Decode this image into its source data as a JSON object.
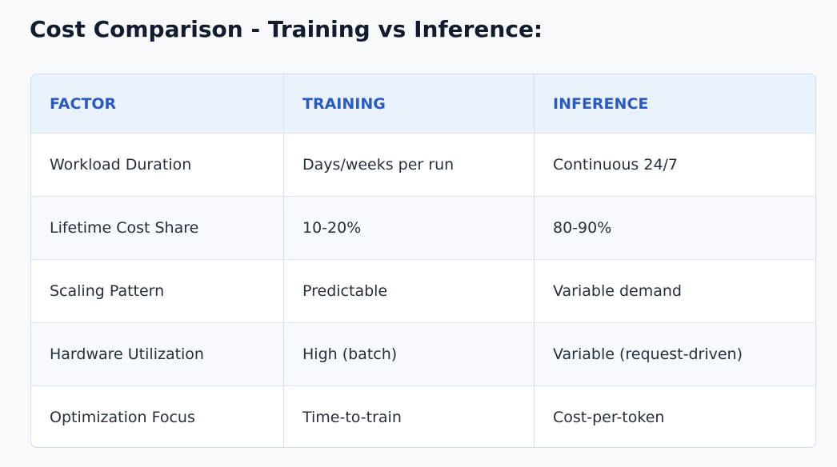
{
  "header": {
    "title": "Cost Comparison - Training vs Inference:"
  },
  "table": {
    "columns": [
      "FACTOR",
      "TRAINING",
      "INFERENCE"
    ],
    "rows": [
      [
        "Workload Duration",
        "Days/weeks per run",
        "Continuous 24/7"
      ],
      [
        "Lifetime Cost Share",
        "10-20%",
        "80-90%"
      ],
      [
        "Scaling Pattern",
        "Predictable",
        "Variable demand"
      ],
      [
        "Hardware Utilization",
        "High (batch)",
        "Variable (request-driven)"
      ],
      [
        "Optimization Focus",
        "Time-to-train",
        "Cost-per-token"
      ]
    ]
  }
}
